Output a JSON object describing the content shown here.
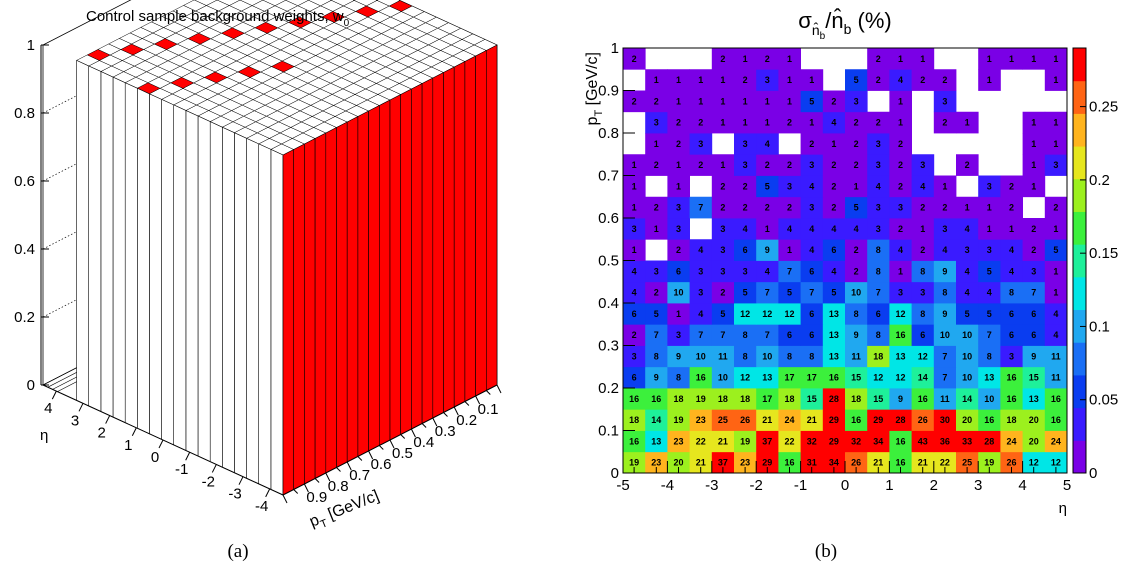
{
  "chart_data": [
    {
      "type": "bar",
      "panel": "(a)",
      "title": "Control sample background weights, w",
      "title_subscript": "0",
      "xlabel": "p",
      "xlabel_subscript": "T",
      "xlabel_unit": " [GeV/c]",
      "ylabel": "η",
      "zlabel": "",
      "eta_ticks": [
        "4",
        "3",
        "2",
        "1",
        "0",
        "-1",
        "-2",
        "-3",
        "-4"
      ],
      "pt_ticks": [
        "0.9",
        "0.8",
        "0.7",
        "0.6",
        "0.5",
        "0.4",
        "0.3",
        "0.2",
        "0.1"
      ],
      "z_ticks": [
        "0",
        "0.2",
        "0.4",
        "0.6",
        "0.8",
        "1"
      ],
      "zlim": [
        0,
        1
      ],
      "colors": {
        "zero_weight": "#ffffff",
        "unit_weight": "#ff0000",
        "grid": "#000000"
      },
      "note": ""
    },
    {
      "type": "heatmap",
      "panel": "(b)",
      "title_main": "σ",
      "title_sub": "n̂",
      "title_subsub": "b",
      "title_rest": "/n̂",
      "title_rest_sub": "b",
      "title_unit": " (%)",
      "xlabel": "η",
      "ylabel": "p",
      "ylabel_subscript": "T",
      "ylabel_unit": " [GeV/c]",
      "xlim": [
        -5,
        5
      ],
      "ylim": [
        0,
        1
      ],
      "x_ticks": [
        "-5",
        "-4",
        "-3",
        "-2",
        "-1",
        "0",
        "1",
        "2",
        "3",
        "4",
        "5"
      ],
      "y_ticks": [
        "0",
        "0.1",
        "0.2",
        "0.3",
        "0.4",
        "0.5",
        "0.6",
        "0.7",
        "0.8",
        "0.9",
        "1"
      ],
      "colorbar_ticks": [
        "0",
        "0.05",
        "0.1",
        "0.15",
        "0.2",
        "0.25"
      ],
      "zlim": [
        0,
        0.29
      ],
      "nx": 20,
      "ny": 20,
      "note": "cell values read approximately; displayed labels are percent, colors map to fraction",
      "rows": [
        [
          19,
          23,
          20,
          21,
          37,
          23,
          29,
          16,
          31,
          34,
          26,
          21,
          16,
          21,
          22,
          25,
          19,
          26,
          12,
          12
        ],
        [
          16,
          13,
          23,
          22,
          21,
          19,
          37,
          22,
          32,
          29,
          32,
          34,
          16,
          43,
          36,
          33,
          28,
          24,
          20,
          24
        ],
        [
          18,
          14,
          19,
          23,
          25,
          26,
          21,
          24,
          21,
          29,
          16,
          29,
          28,
          26,
          30,
          20,
          16,
          18,
          20,
          16
        ],
        [
          16,
          16,
          18,
          19,
          18,
          18,
          17,
          18,
          15,
          28,
          18,
          15,
          9,
          16,
          11,
          14,
          10,
          16,
          13,
          16
        ],
        [
          6,
          9,
          8,
          16,
          10,
          12,
          13,
          17,
          17,
          16,
          15,
          12,
          12,
          14,
          7,
          10,
          13,
          16,
          15,
          11
        ],
        [
          3,
          8,
          9,
          10,
          11,
          8,
          10,
          8,
          8,
          13,
          11,
          18,
          13,
          12,
          7,
          10,
          8,
          3,
          9,
          11
        ],
        [
          2,
          7,
          3,
          7,
          7,
          8,
          7,
          6,
          6,
          13,
          9,
          8,
          16,
          6,
          10,
          10,
          7,
          6,
          6,
          4
        ],
        [
          6,
          5,
          1,
          4,
          5,
          12,
          12,
          12,
          6,
          13,
          8,
          6,
          12,
          8,
          9,
          5,
          5,
          6,
          6,
          4
        ],
        [
          4,
          2,
          10,
          3,
          2,
          5,
          7,
          5,
          7,
          5,
          10,
          7,
          3,
          3,
          8,
          4,
          4,
          8,
          7,
          1
        ],
        [
          4,
          3,
          6,
          3,
          3,
          3,
          4,
          7,
          6,
          4,
          2,
          8,
          1,
          8,
          9,
          4,
          5,
          4,
          3,
          1
        ],
        [
          1,
          0,
          2,
          4,
          3,
          6,
          9,
          1,
          4,
          6,
          2,
          8,
          4,
          2,
          4,
          3,
          3,
          4,
          2,
          5
        ],
        [
          3,
          1,
          3,
          0,
          3,
          4,
          1,
          4,
          4,
          4,
          4,
          3,
          2,
          1,
          3,
          4,
          1,
          1,
          2,
          1
        ],
        [
          1,
          2,
          3,
          7,
          2,
          2,
          2,
          2,
          3,
          2,
          5,
          3,
          3,
          2,
          2,
          1,
          1,
          2,
          0,
          2
        ],
        [
          1,
          0,
          1,
          0,
          2,
          2,
          5,
          3,
          4,
          2,
          1,
          4,
          2,
          4,
          1,
          0,
          3,
          2,
          1,
          0
        ],
        [
          1,
          2,
          1,
          2,
          1,
          3,
          2,
          2,
          3,
          2,
          2,
          3,
          2,
          3,
          0,
          2,
          0,
          0,
          1,
          3
        ],
        [
          0,
          1,
          2,
          3,
          0,
          3,
          4,
          0,
          2,
          1,
          2,
          3,
          2,
          0,
          0,
          0,
          0,
          0,
          1,
          1
        ],
        [
          0,
          3,
          2,
          2,
          1,
          1,
          1,
          2,
          1,
          4,
          2,
          2,
          1,
          0,
          2,
          1,
          0,
          0,
          1,
          1
        ],
        [
          2,
          2,
          1,
          1,
          1,
          1,
          1,
          1,
          5,
          2,
          3,
          0,
          1,
          0,
          3,
          0,
          0,
          0,
          0,
          0
        ],
        [
          0,
          1,
          1,
          1,
          1,
          2,
          3,
          1,
          1,
          0,
          5,
          2,
          4,
          2,
          2,
          0,
          1,
          0,
          0,
          1
        ],
        [
          2,
          0,
          0,
          0,
          2,
          1,
          2,
          1,
          0,
          0,
          0,
          2,
          1,
          1,
          0,
          0,
          1,
          1,
          1,
          1
        ]
      ],
      "colors": {
        "scale": [
          "#7a00e6",
          "#3a1bff",
          "#0a3df0",
          "#1a6ff5",
          "#20a8f0",
          "#00e6e6",
          "#1ef09a",
          "#3cf03c",
          "#9cf01e",
          "#e6e61e",
          "#ffb41e",
          "#ff6414",
          "#ff0000"
        ]
      }
    }
  ]
}
